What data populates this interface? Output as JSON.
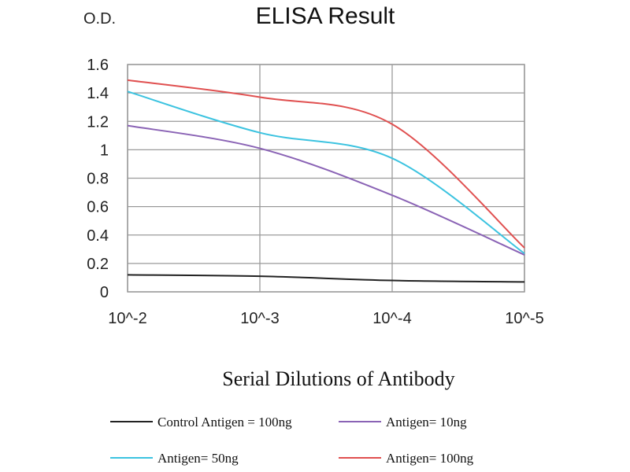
{
  "header": {
    "ylabel_top": "O.D.",
    "title": "ELISA Result"
  },
  "chart_data": {
    "type": "line",
    "title": "ELISA Result",
    "ylabel": "O.D.",
    "xlabel": "Serial Dilutions of Antibody",
    "categories": [
      "10^-2",
      "10^-3",
      "10^-4",
      "10^-5"
    ],
    "y_ticks": [
      "0",
      "0.2",
      "0.4",
      "0.6",
      "0.8",
      "1",
      "1.2",
      "1.4",
      "1.6"
    ],
    "ylim": [
      0,
      1.6
    ],
    "grid": true,
    "legend_position": "bottom",
    "series": [
      {
        "name": "Control Antigen = 100ng",
        "color": "#222222",
        "values": [
          0.12,
          0.11,
          0.08,
          0.07
        ]
      },
      {
        "name": "Antigen= 10ng",
        "color": "#8a63b5",
        "values": [
          1.17,
          1.01,
          0.68,
          0.26
        ]
      },
      {
        "name": "Antigen= 50ng",
        "color": "#3cc3e0",
        "values": [
          1.41,
          1.12,
          0.94,
          0.27
        ]
      },
      {
        "name": "Antigen= 100ng",
        "color": "#e05050",
        "values": [
          1.49,
          1.37,
          1.18,
          0.31
        ]
      }
    ]
  }
}
